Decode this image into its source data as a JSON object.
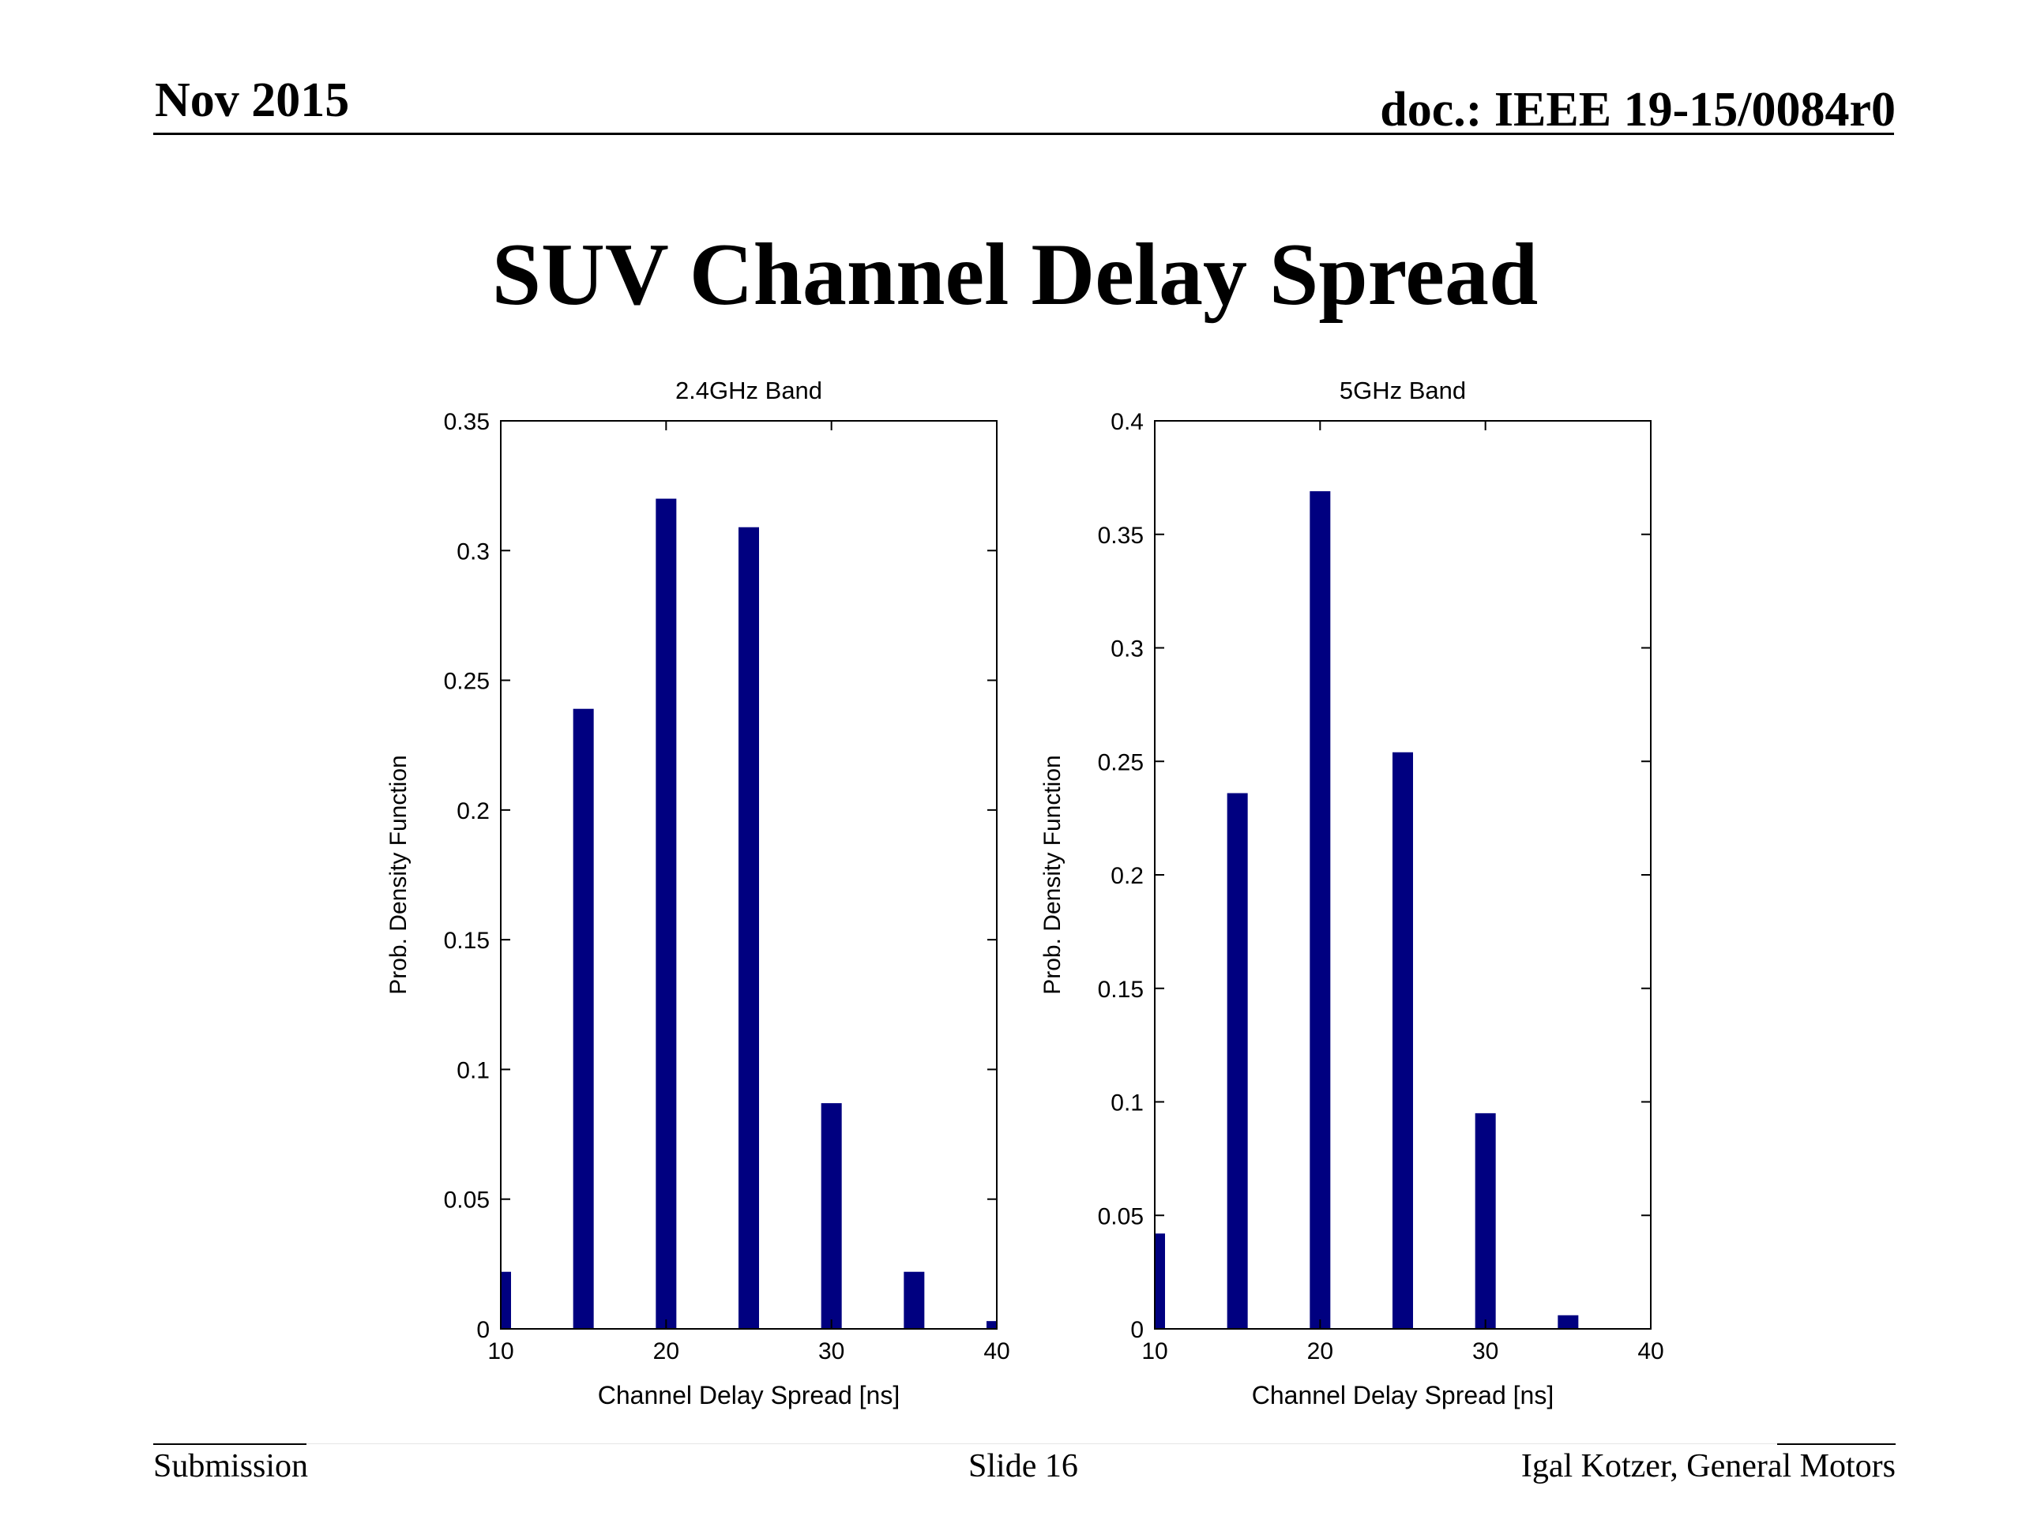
{
  "header": {
    "date": "Nov 2015",
    "doc": "doc.: IEEE 19-15/0084r0"
  },
  "title": "SUV Channel Delay Spread",
  "footer": {
    "left": "Submission",
    "center": "Slide 16",
    "right": "Igal Kotzer, General Motors"
  },
  "bar_color": "#000080",
  "chart_data": [
    {
      "type": "bar",
      "title": "2.4GHz Band",
      "xlabel": "Channel Delay Spread [ns]",
      "ylabel": "Prob. Density Function",
      "x": [
        10,
        15,
        20,
        25,
        30,
        35,
        40
      ],
      "values": [
        0.022,
        0.239,
        0.32,
        0.309,
        0.087,
        0.022,
        0.003
      ],
      "xlim": [
        10,
        40
      ],
      "ylim": [
        0,
        0.35
      ],
      "xticks": [
        10,
        20,
        30,
        40
      ],
      "xtick_labels": [
        "10",
        "20",
        "30",
        "40"
      ],
      "yticks": [
        0,
        0.05,
        0.1,
        0.15,
        0.2,
        0.25,
        0.3,
        0.35
      ],
      "ytick_labels": [
        "0",
        "0.05",
        "0.1",
        "0.15",
        "0.2",
        "0.25",
        "0.3",
        "0.35"
      ],
      "grid": false
    },
    {
      "type": "bar",
      "title": "5GHz Band",
      "xlabel": "Channel Delay Spread [ns]",
      "ylabel": "Prob. Density Function",
      "x": [
        10,
        15,
        20,
        25,
        30,
        35
      ],
      "values": [
        0.042,
        0.236,
        0.369,
        0.254,
        0.095,
        0.006
      ],
      "xlim": [
        10,
        40
      ],
      "ylim": [
        0,
        0.4
      ],
      "xticks": [
        10,
        20,
        30,
        40
      ],
      "xtick_labels": [
        "10",
        "20",
        "30",
        "40"
      ],
      "yticks": [
        0,
        0.05,
        0.1,
        0.15,
        0.2,
        0.25,
        0.3,
        0.35,
        0.4
      ],
      "ytick_labels": [
        "0",
        "0.05",
        "0.1",
        "0.15",
        "0.2",
        "0.25",
        "0.3",
        "0.35",
        "0.4"
      ],
      "grid": false
    }
  ]
}
